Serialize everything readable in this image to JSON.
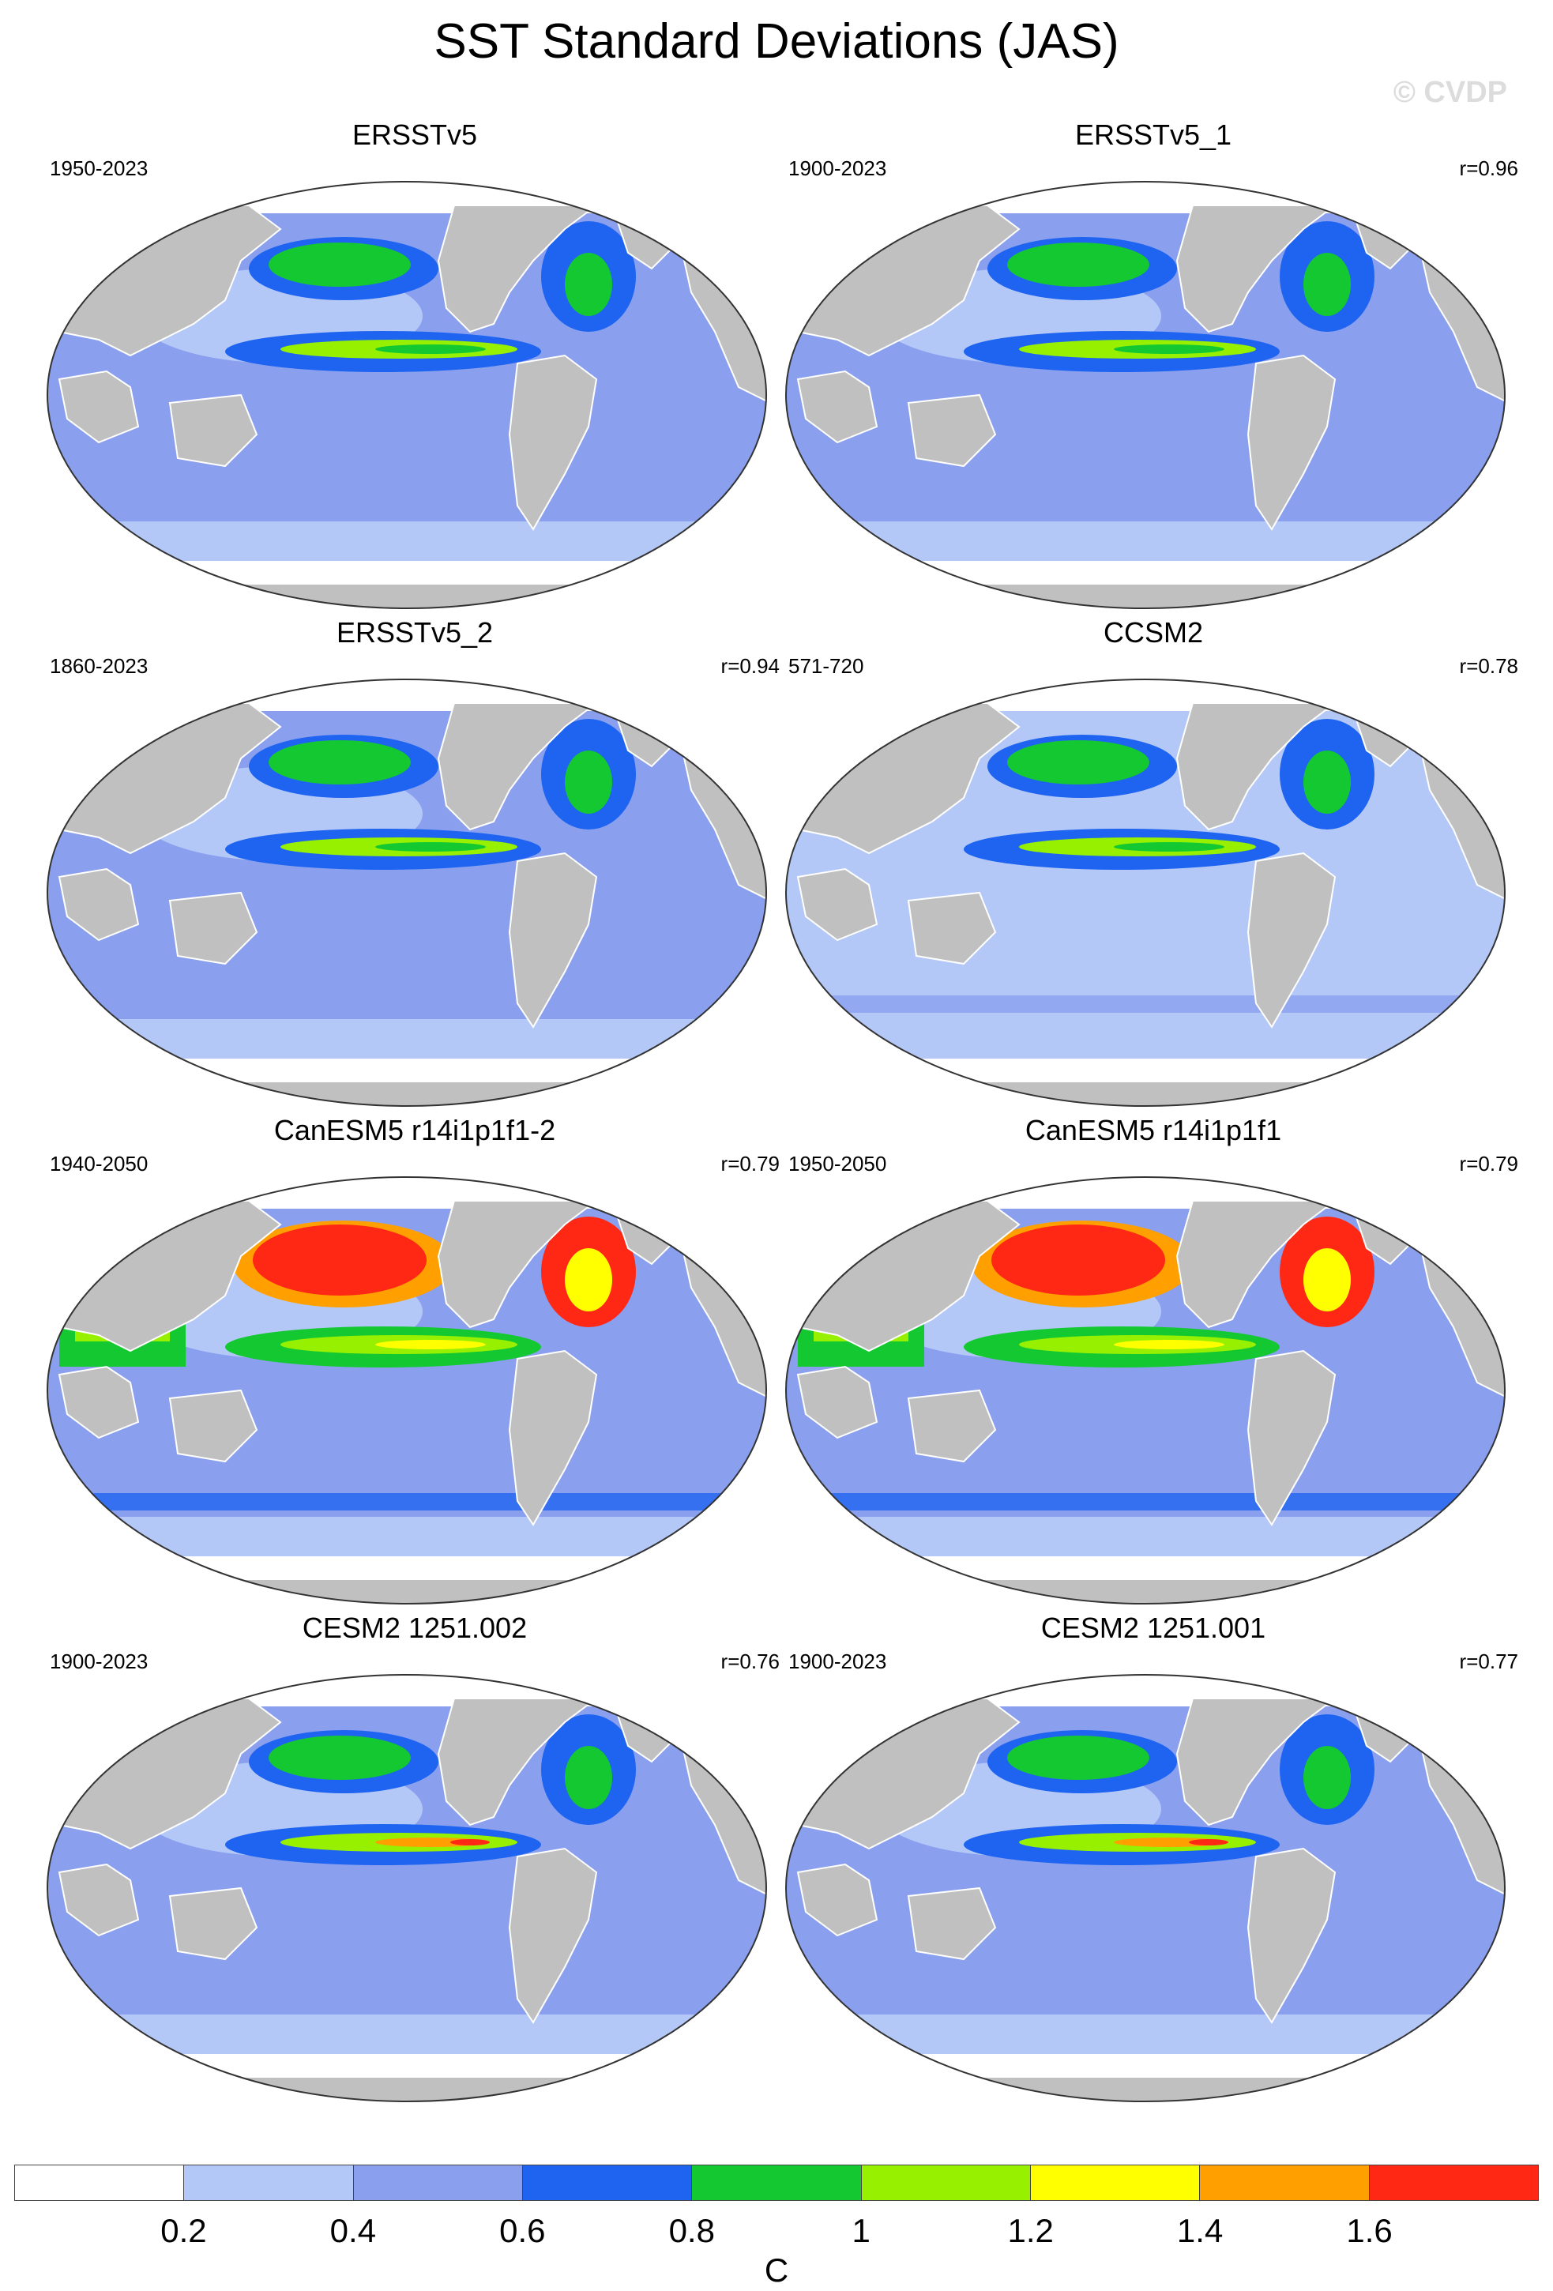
{
  "title": "SST Standard Deviations (JAS)",
  "watermark": "© CVDP",
  "units": "C",
  "colorbar": {
    "levels": [
      "0.2",
      "0.4",
      "0.6",
      "0.8",
      "1",
      "1.2",
      "1.4",
      "1.6"
    ],
    "colors": [
      "#ffffff",
      "#b4c8f8",
      "#8aa0ee",
      "#1e64f0",
      "#14c832",
      "#96f000",
      "#ffff00",
      "#ffa000",
      "#ff2814"
    ]
  },
  "colors": {
    "land": "#c0c0c0",
    "ocean_low": "#b4c8f8",
    "ocean_mid": "#8aa0ee",
    "ocean_high": "#1e64f0",
    "green": "#14c832",
    "lime": "#96f000",
    "yellow": "#ffff00",
    "orange": "#ffa000",
    "red": "#ff2814",
    "ice": "#ffffff"
  },
  "panels": [
    {
      "title": "ERSSTv5",
      "period": "1950-2023",
      "corr": ""
    },
    {
      "title": "ERSSTv5_1",
      "period": "1900-2023",
      "corr": "r=0.96"
    },
    {
      "title": "ERSSTv5_2",
      "period": "1860-2023",
      "corr": "r=0.94"
    },
    {
      "title": "CCSM2",
      "period": "571-720",
      "corr": "r=0.78"
    },
    {
      "title": "CanESM5 r14i1p1f1-2",
      "period": "1940-2050",
      "corr": "r=0.79"
    },
    {
      "title": "CanESM5 r14i1p1f1",
      "period": "1950-2050",
      "corr": "r=0.79"
    },
    {
      "title": "CESM2 1251.002",
      "period": "1900-2023",
      "corr": "r=0.76"
    },
    {
      "title": "CESM2 1251.001",
      "period": "1900-2023",
      "corr": "r=0.77"
    }
  ]
}
